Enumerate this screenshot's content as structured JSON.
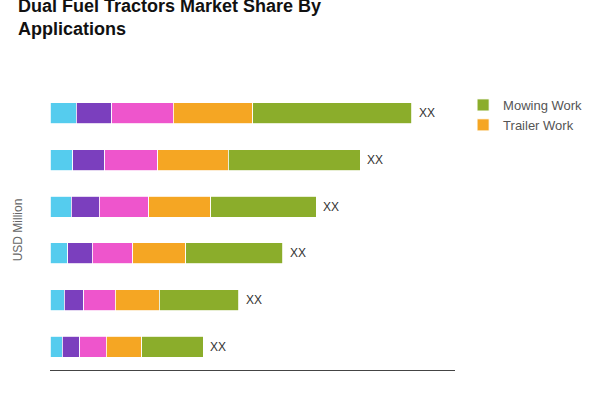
{
  "chart_data": {
    "type": "bar",
    "orientation": "horizontal",
    "stacked": true,
    "title": "Dual Fuel Tractors Market Share By",
    "subtitle": "Applications",
    "ylabel": "USD Million",
    "categories": [
      null,
      null,
      null,
      null,
      null,
      null
    ],
    "series": [
      {
        "color": "#55CCEE",
        "values": [
          1.5,
          1.3,
          1.2,
          1.0,
          0.8,
          0.7
        ]
      },
      {
        "color": "#7B3FBE",
        "values": [
          2.0,
          1.8,
          1.6,
          1.4,
          1.1,
          1.0
        ]
      },
      {
        "color": "#EE55CC",
        "values": [
          3.5,
          3.0,
          2.8,
          2.3,
          1.8,
          1.5
        ]
      },
      {
        "name": "Trailer Work",
        "color": "#F5A623",
        "values": [
          4.5,
          4.0,
          3.5,
          3.0,
          2.5,
          2.0
        ]
      },
      {
        "name": "Mowing Work",
        "color": "#8BAD2B",
        "values": [
          9.0,
          7.5,
          6.0,
          5.5,
          4.5,
          3.5
        ]
      }
    ],
    "annotations": [
      "XX",
      "XX",
      "XX",
      "XX",
      "XX",
      "XX"
    ],
    "xlim": [
      0,
      22.96
    ],
    "tick_labels": false,
    "grid": false,
    "legend": "upper right"
  }
}
